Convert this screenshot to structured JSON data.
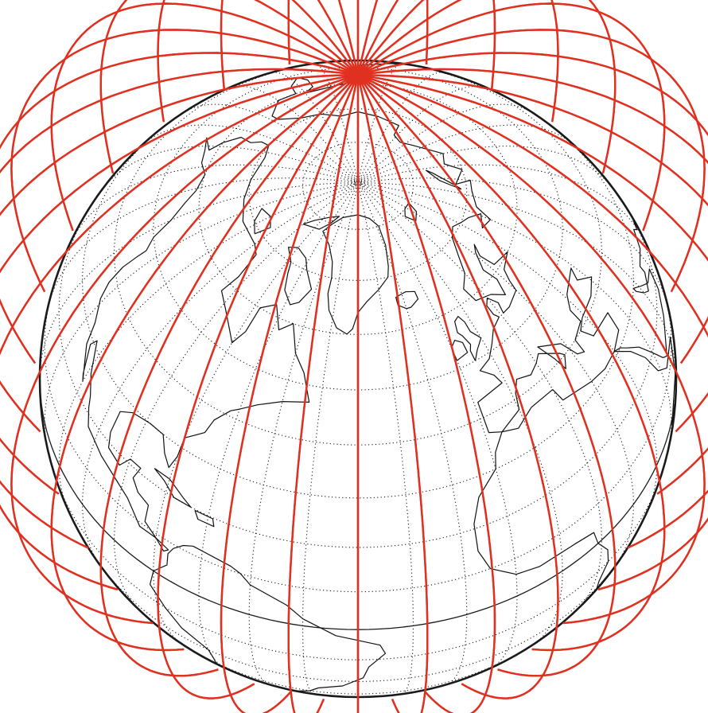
{
  "map": {
    "projection": "orthographic",
    "view_center": {
      "lat_deg": 52,
      "lon_deg": -40
    },
    "graticule_spacing_deg": 10,
    "graticule_style": "dotted",
    "equator_style": "solid",
    "globe_outline_color": "#1a1a1a",
    "coastline_color": "#111111"
  },
  "orbits": {
    "pass_count": 36,
    "color": "#e03020",
    "orbit_type": "highly elliptical",
    "apogee_region": "north pole",
    "lon_spacing_deg": 10
  }
}
